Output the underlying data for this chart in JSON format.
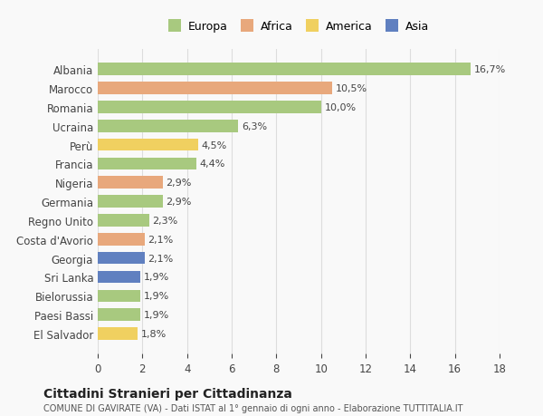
{
  "categories": [
    "Albania",
    "Marocco",
    "Romania",
    "Ucraina",
    "Perù",
    "Francia",
    "Nigeria",
    "Germania",
    "Regno Unito",
    "Costa d'Avorio",
    "Georgia",
    "Sri Lanka",
    "Bielorussia",
    "Paesi Bassi",
    "El Salvador"
  ],
  "values": [
    16.7,
    10.5,
    10.0,
    6.3,
    4.5,
    4.4,
    2.9,
    2.9,
    2.3,
    2.1,
    2.1,
    1.9,
    1.9,
    1.9,
    1.8
  ],
  "labels": [
    "16,7%",
    "10,5%",
    "10,0%",
    "6,3%",
    "4,5%",
    "4,4%",
    "2,9%",
    "2,9%",
    "2,3%",
    "2,1%",
    "2,1%",
    "1,9%",
    "1,9%",
    "1,9%",
    "1,8%"
  ],
  "continents": [
    "Europa",
    "Africa",
    "Europa",
    "Europa",
    "America",
    "Europa",
    "Africa",
    "Europa",
    "Europa",
    "Africa",
    "Asia",
    "Asia",
    "Europa",
    "Europa",
    "America"
  ],
  "colors": {
    "Europa": "#a8c97f",
    "Africa": "#e8a87c",
    "America": "#f0d060",
    "Asia": "#6080c0"
  },
  "legend_order": [
    "Europa",
    "Africa",
    "America",
    "Asia"
  ],
  "title": "Cittadini Stranieri per Cittadinanza",
  "subtitle": "COMUNE DI GAVIRATE (VA) - Dati ISTAT al 1° gennaio di ogni anno - Elaborazione TUTTITALIA.IT",
  "xlim": [
    0,
    18
  ],
  "xticks": [
    0,
    2,
    4,
    6,
    8,
    10,
    12,
    14,
    16,
    18
  ],
  "background_color": "#f9f9f9",
  "grid_color": "#dddddd"
}
